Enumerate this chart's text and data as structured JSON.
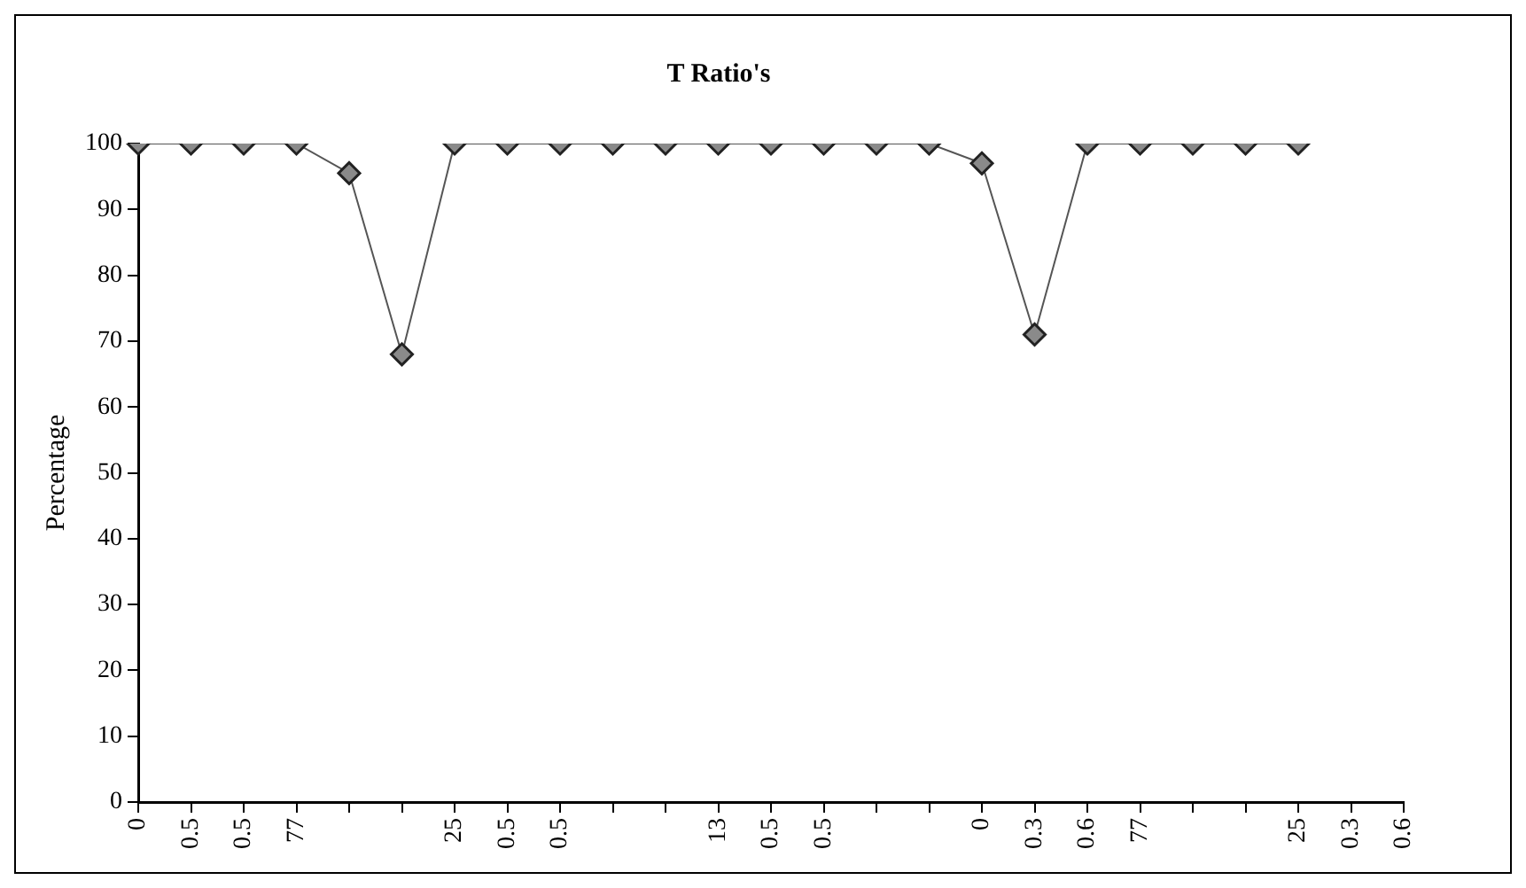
{
  "chart_data": {
    "type": "line",
    "title": "T Ratio's",
    "ylabel": "Percentage",
    "categories": [
      "0",
      "0.5",
      "0.5",
      "77",
      null,
      null,
      "25",
      "0.5",
      "0.5",
      null,
      null,
      "13",
      "0.5",
      "0.5",
      null,
      null,
      "0",
      "0.3",
      "0.6",
      "77",
      null,
      null,
      "25",
      "0.3",
      "0.6"
    ],
    "series": [
      {
        "color": "#555555",
        "values": [
          100,
          100,
          100,
          100,
          95.5,
          68,
          100,
          100,
          100,
          100,
          100,
          100,
          100,
          100,
          100,
          100,
          97,
          71,
          100,
          100,
          100,
          100,
          100,
          null,
          null
        ]
      }
    ],
    "ylim": [
      0,
      100
    ],
    "yticks": [
      0,
      10,
      20,
      30,
      40,
      50,
      60,
      70,
      80,
      90,
      100
    ],
    "grid": false,
    "legend": false,
    "marker": "diamond",
    "line_style": "solid"
  }
}
